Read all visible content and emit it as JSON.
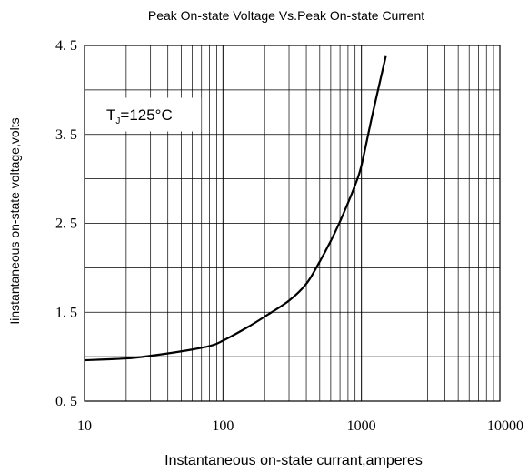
{
  "chart_data": {
    "type": "line",
    "title": "Peak On-state Voltage Vs.Peak On-state Current",
    "xlabel": "Instantaneous on-state currant,amperes",
    "ylabel": "Iinstantaneous on-state voltage,volts",
    "xscale": "log",
    "xlim": [
      10,
      10000
    ],
    "ylim": [
      0.5,
      4.5
    ],
    "x_ticks": [
      10,
      100,
      1000,
      10000
    ],
    "x_tick_labels": [
      "10",
      "100",
      "1000",
      "10000"
    ],
    "y_ticks": [
      0.5,
      1.5,
      2.5,
      3.5,
      4.5
    ],
    "y_tick_labels": [
      "0. 5",
      "1. 5",
      "2. 5",
      "3. 5",
      "4. 5"
    ],
    "grid": true,
    "annotation": {
      "text": "T",
      "sub": "J",
      "rest": "=125°C"
    },
    "series": [
      {
        "color": "#000000",
        "x": [
          10,
          20,
          30,
          50,
          80,
          100,
          150,
          200,
          300,
          400,
          500,
          600,
          700,
          800,
          900,
          1000,
          1200,
          1500
        ],
        "y": [
          0.96,
          0.98,
          1.01,
          1.06,
          1.12,
          1.18,
          1.33,
          1.45,
          1.63,
          1.82,
          2.07,
          2.3,
          2.52,
          2.73,
          2.93,
          3.15,
          3.72,
          4.38
        ]
      }
    ]
  }
}
